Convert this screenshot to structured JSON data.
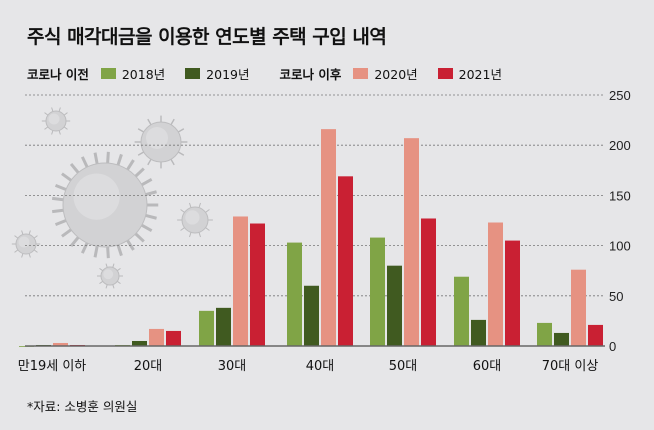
{
  "title": "주식 매각대금을 이용한 연도별 주택 구입 내역",
  "legend": {
    "group_before": "코로나 이전",
    "group_after": "코로나 이후"
  },
  "source": "*자료: 소병훈 의원실",
  "colors": {
    "2018년": "#80a446",
    "2019년": "#405a20",
    "2020년": "#e69282",
    "2021년": "#c92033",
    "background": "#e6e6e8"
  },
  "chart_data": {
    "type": "bar",
    "title": "주식 매각대금을 이용한 연도별 주택 구입 내역",
    "xlabel": "",
    "ylabel": "",
    "ylim": [
      0,
      250
    ],
    "yticks": [
      0,
      50,
      100,
      150,
      200,
      250
    ],
    "grid": true,
    "legend_position": "top-left",
    "categories": [
      "만19세 이하",
      "20대",
      "30대",
      "40대",
      "50대",
      "60대",
      "70대 이상"
    ],
    "series": [
      {
        "name": "2018년",
        "color": "#80a446",
        "values": [
          0,
          1,
          35,
          103,
          108,
          69,
          23
        ]
      },
      {
        "name": "2019년",
        "color": "#405a20",
        "values": [
          1,
          5,
          38,
          60,
          80,
          26,
          13
        ]
      },
      {
        "name": "2020년",
        "color": "#e69282",
        "values": [
          3,
          17,
          129,
          216,
          207,
          123,
          76
        ]
      },
      {
        "name": "2021년",
        "color": "#c92033",
        "values": [
          1,
          15,
          122,
          169,
          127,
          105,
          21
        ]
      }
    ]
  }
}
